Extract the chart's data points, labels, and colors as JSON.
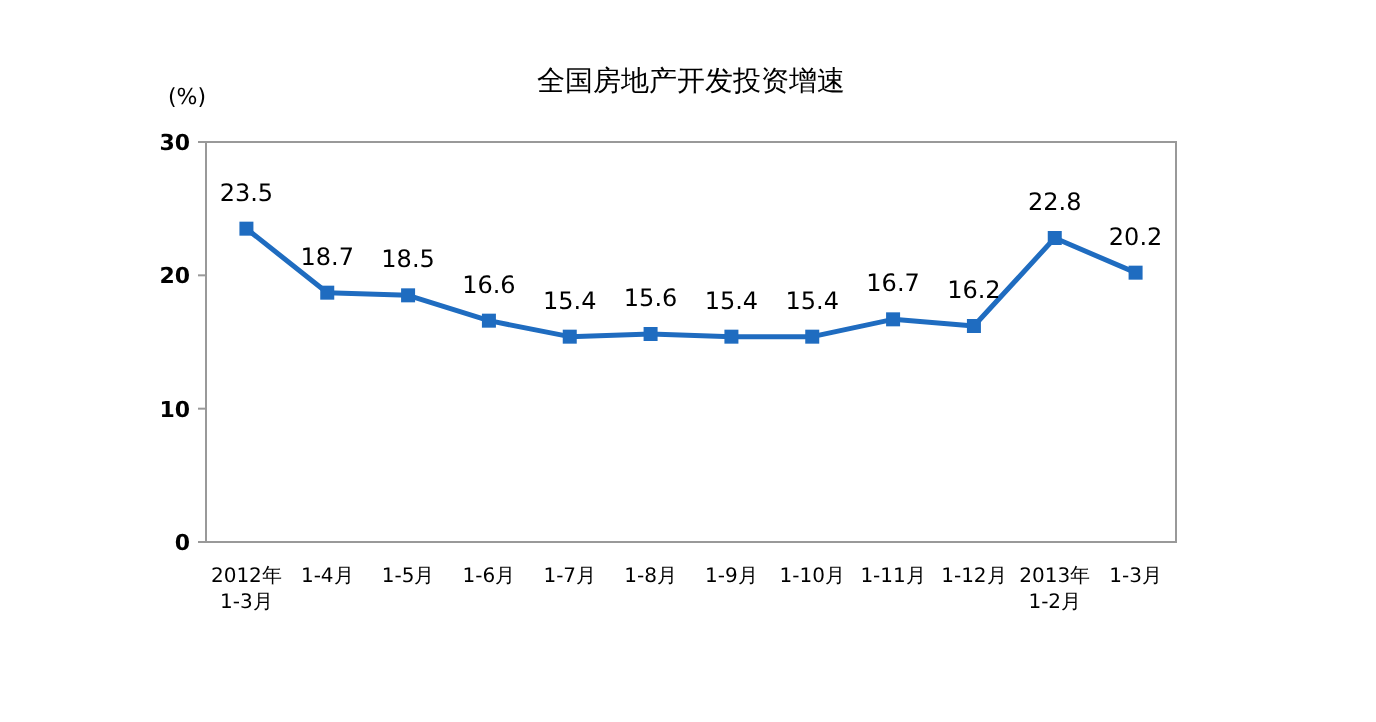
{
  "chart_data": {
    "type": "line",
    "title": "全国房地产开发投资增速",
    "ylabel": "(%)",
    "categories": [
      "2012年\n1-3月",
      "1-4月",
      "1-5月",
      "1-6月",
      "1-7月",
      "1-8月",
      "1-9月",
      "1-10月",
      "1-11月",
      "1-12月",
      "2013年\n1-2月",
      "1-3月"
    ],
    "series": [
      {
        "color": "#1f6cc0",
        "values": [
          23.5,
          18.7,
          18.5,
          16.6,
          15.4,
          15.6,
          15.4,
          15.4,
          16.7,
          16.2,
          22.8,
          20.2
        ]
      }
    ],
    "ylim": [
      0,
      30
    ],
    "yticks": [
      0,
      10,
      20,
      30
    ],
    "grid": false,
    "marker": "square",
    "line_style": "solid",
    "data_labels": true
  }
}
